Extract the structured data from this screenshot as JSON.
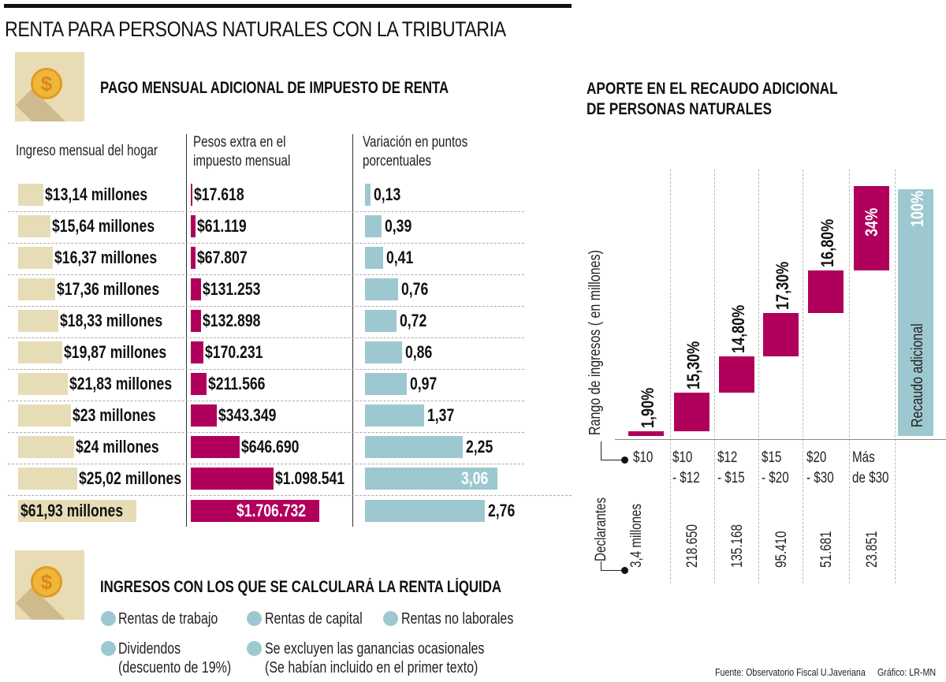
{
  "title": "RENTA PARA PERSONAS NATURALES CON LA TRIBUTARIA",
  "section1": {
    "icon": "dollar-coin-icon",
    "subtitle": "PAGO MENSUAL ADICIONAL DE IMPUESTO DE RENTA",
    "col_headers": {
      "income": "Ingreso mensual del hogar",
      "pesos_line1": "Pesos extra en el",
      "pesos_line2": "impuesto mensual",
      "var_line1": "Variación en puntos",
      "var_line2": "porcentuales"
    }
  },
  "section2": {
    "icon": "dollar-coin-icon",
    "subtitle": "INGRESOS CON LOS QUE SE CALCULARÁ LA RENTA LÍQUIDA",
    "items": [
      {
        "line1": "Rentas de trabajo",
        "line2": ""
      },
      {
        "line1": "Rentas de capital",
        "line2": ""
      },
      {
        "line1": "Rentas no laborales",
        "line2": ""
      },
      {
        "line1": "Dividendos",
        "line2": "(descuento de 19%)"
      },
      {
        "line1": "Se excluyen las ganancias ocasionales",
        "line2": "(Se habían incluido en el primer texto)"
      }
    ]
  },
  "right": {
    "title_line1": "APORTE EN EL RECAUDO ADICIONAL",
    "title_line2": "DE PERSONAS NATURALES",
    "axis_label": "Rango de ingresos ( en millones)",
    "declarantes_label": "Declarantes",
    "total_label": "Recaudo adicional",
    "total_value": "100%"
  },
  "footer": {
    "source": "Fuente: Observatorio Fiscal U.Javeriana",
    "credit": "Gráfico: LR-MN"
  },
  "colors": {
    "income_bar": "#e6dcb6",
    "pesos_bar": "#b0005c",
    "variation_bar": "#9ec8d0",
    "waterfall_bar": "#b0005c",
    "total_bar": "#9ec8d0"
  },
  "chart_data": [
    {
      "type": "table",
      "title": "PAGO MENSUAL ADICIONAL DE IMPUESTO DE RENTA",
      "columns": [
        "Ingreso mensual del hogar",
        "Pesos extra en el impuesto mensual",
        "Variación en puntos porcentuales"
      ],
      "rows": [
        {
          "income_label": "$13,14 millones",
          "income": 13.14,
          "pesos_label": "$17.618",
          "pesos": 17618,
          "var_label": "0,13",
          "var": 0.13
        },
        {
          "income_label": "$15,64 millones",
          "income": 15.64,
          "pesos_label": "$61.119",
          "pesos": 61119,
          "var_label": "0,39",
          "var": 0.39
        },
        {
          "income_label": "$16,37 millones",
          "income": 16.37,
          "pesos_label": "$67.807",
          "pesos": 67807,
          "var_label": "0,41",
          "var": 0.41
        },
        {
          "income_label": "$17,36 millones",
          "income": 17.36,
          "pesos_label": "$131.253",
          "pesos": 131253,
          "var_label": "0,76",
          "var": 0.76
        },
        {
          "income_label": "$18,33 millones",
          "income": 18.33,
          "pesos_label": "$132.898",
          "pesos": 132898,
          "var_label": "0,72",
          "var": 0.72
        },
        {
          "income_label": "$19,87 millones",
          "income": 19.87,
          "pesos_label": "$170.231",
          "pesos": 170231,
          "var_label": "0,86",
          "var": 0.86
        },
        {
          "income_label": "$21,83 millones",
          "income": 21.83,
          "pesos_label": "$211.566",
          "pesos": 211566,
          "var_label": "0,97",
          "var": 0.97
        },
        {
          "income_label": "$23 millones",
          "income": 23,
          "pesos_label": "$343.349",
          "pesos": 343349,
          "var_label": "1,37",
          "var": 1.37
        },
        {
          "income_label": "$24 millones",
          "income": 24,
          "pesos_label": "$646.690",
          "pesos": 646690,
          "var_label": "2,25",
          "var": 2.25
        },
        {
          "income_label": "$25,02 millones",
          "income": 25.02,
          "pesos_label": "$1.098.541",
          "pesos": 1098541,
          "var_label": "3,06",
          "var": 3.06
        },
        {
          "income_label": "$61,93 millones",
          "income": 61.93,
          "pesos_label": "$1.706.732",
          "pesos": 1706732,
          "var_label": "2,76",
          "var": 2.76
        }
      ]
    },
    {
      "type": "bar",
      "subtype": "waterfall",
      "title": "APORTE EN EL RECAUDO ADICIONAL DE PERSONAS NATURALES",
      "ylabel": "Rango de ingresos ( en millones)",
      "categories": [
        "$10",
        "$10 - $12",
        "$12 - $15",
        "$15 - $20",
        "$20 - $30",
        "Más de $30"
      ],
      "category_lines": [
        [
          "$10",
          ""
        ],
        [
          "$10",
          "- $12"
        ],
        [
          "$12",
          "- $15"
        ],
        [
          "$15",
          "- $20"
        ],
        [
          "$20",
          "- $30"
        ],
        [
          "Más",
          "de $30"
        ]
      ],
      "values": [
        1.9,
        15.3,
        14.8,
        17.3,
        16.8,
        34
      ],
      "value_labels": [
        "1,90%",
        "15,30%",
        "14,80%",
        "17,30%",
        "16,80%",
        "34%"
      ],
      "total": {
        "label": "Recaudo adicional",
        "value": 100,
        "value_label": "100%"
      },
      "declarantes": [
        "3,4 millones",
        "218.650",
        "135.168",
        "95.410",
        "51.681",
        "23.851"
      ],
      "ylim": [
        0,
        100
      ]
    }
  ]
}
